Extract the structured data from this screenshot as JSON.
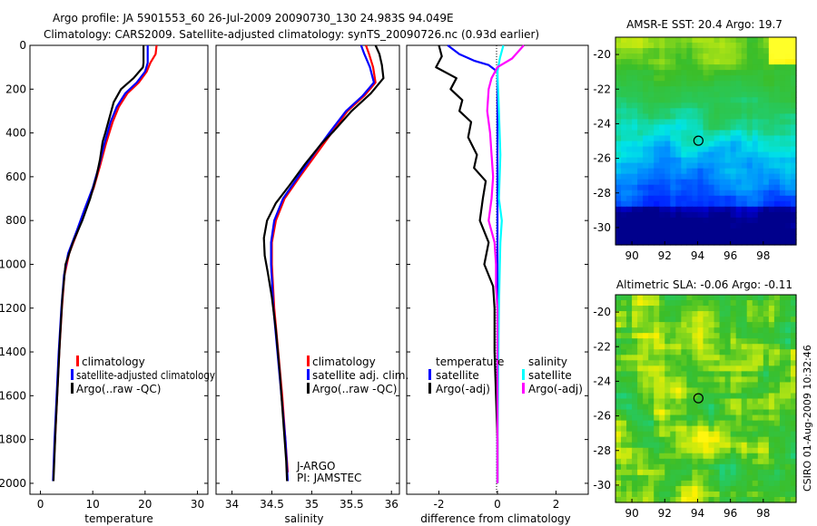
{
  "header": {
    "line1": "Argo profile: JA 5901553_60 26-Jul-2009 20090730_130 24.983S 94.049E",
    "line2": "Climatology: CARS2009. Satellite-adjusted climatology: synTS_20090726.nc (0.93d earlier)"
  },
  "footer_stamp": "CSIRO 01-Aug-2009 10:32:46",
  "chart_data": [
    {
      "type": "line",
      "id": "temperature",
      "xlabel": "temperature",
      "ylabel": "",
      "xlim": [
        -2,
        32
      ],
      "ylim": [
        2050,
        0
      ],
      "xticks": [
        "0",
        "10",
        "20",
        "30"
      ],
      "yticks": [
        "0",
        "200",
        "400",
        "600",
        "800",
        "1000",
        "1200",
        "1400",
        "1600",
        "1800",
        "2000"
      ],
      "legend": [
        "climatology",
        "satellite-adjusted climatology",
        "Argo(..raw -QC)"
      ],
      "series": [
        {
          "name": "climatology",
          "color": "#ff0000",
          "values": [
            [
              22.2,
              0
            ],
            [
              22,
              40
            ],
            [
              21,
              80
            ],
            [
              20.3,
              120
            ],
            [
              18.8,
              170
            ],
            [
              16.6,
              220
            ],
            [
              15,
              280
            ],
            [
              13.8,
              350
            ],
            [
              12.5,
              450
            ],
            [
              11.4,
              550
            ],
            [
              10.2,
              650
            ],
            [
              8.6,
              750
            ],
            [
              7.1,
              850
            ],
            [
              5.5,
              950
            ],
            [
              4.6,
              1050
            ],
            [
              4.1,
              1200
            ],
            [
              3.6,
              1400
            ],
            [
              3.2,
              1600
            ],
            [
              2.8,
              1800
            ],
            [
              2.5,
              1950
            ]
          ]
        },
        {
          "name": "satellite-adjusted climatology",
          "color": "#0000ff",
          "values": [
            [
              20.5,
              0
            ],
            [
              20.5,
              40
            ],
            [
              20.5,
              80
            ],
            [
              20,
              120
            ],
            [
              18.4,
              170
            ],
            [
              16.2,
              220
            ],
            [
              14.6,
              280
            ],
            [
              13.4,
              350
            ],
            [
              12.2,
              450
            ],
            [
              11.2,
              550
            ],
            [
              10,
              650
            ],
            [
              8.4,
              750
            ],
            [
              6.9,
              850
            ],
            [
              5.3,
              950
            ],
            [
              4.5,
              1050
            ],
            [
              4,
              1200
            ],
            [
              3.5,
              1400
            ],
            [
              3.1,
              1600
            ],
            [
              2.7,
              1800
            ],
            [
              2.4,
              1990
            ]
          ]
        },
        {
          "name": "Argo(..raw -QC)",
          "color": "#000000",
          "values": [
            [
              19.7,
              0
            ],
            [
              19.7,
              40
            ],
            [
              19.7,
              80
            ],
            [
              19.6,
              100
            ],
            [
              17.8,
              150
            ],
            [
              15.4,
              200
            ],
            [
              14,
              260
            ],
            [
              13.2,
              330
            ],
            [
              12.4,
              400
            ],
            [
              11.9,
              440
            ],
            [
              11.4,
              520
            ],
            [
              10.7,
              600
            ],
            [
              9.5,
              700
            ],
            [
              8,
              800
            ],
            [
              6.2,
              900
            ],
            [
              4.8,
              1000
            ],
            [
              4.2,
              1150
            ],
            [
              3.7,
              1350
            ],
            [
              3.3,
              1550
            ],
            [
              2.9,
              1750
            ],
            [
              2.5,
              1990
            ]
          ]
        }
      ]
    },
    {
      "type": "line",
      "id": "salinity",
      "xlabel": "salinity",
      "xlim": [
        33.8,
        36.1
      ],
      "ylim": [
        2050,
        0
      ],
      "xticks": [
        "34",
        "34.5",
        "35",
        "35.5",
        "36"
      ],
      "legend": [
        "climatology",
        "satellite adj. clim.",
        "Argo(..raw -QC)"
      ],
      "annotations": [
        "J-ARGO",
        "PI: JAMSTEC"
      ],
      "series": [
        {
          "name": "climatology",
          "color": "#ff0000",
          "values": [
            [
              35.68,
              0
            ],
            [
              35.72,
              40
            ],
            [
              35.77,
              100
            ],
            [
              35.8,
              170
            ],
            [
              35.66,
              230
            ],
            [
              35.45,
              300
            ],
            [
              35.25,
              400
            ],
            [
              35.05,
              500
            ],
            [
              34.85,
              600
            ],
            [
              34.66,
              700
            ],
            [
              34.55,
              800
            ],
            [
              34.5,
              900
            ],
            [
              34.5,
              1000
            ],
            [
              34.53,
              1200
            ],
            [
              34.58,
              1400
            ],
            [
              34.63,
              1600
            ],
            [
              34.67,
              1800
            ],
            [
              34.7,
              1950
            ]
          ]
        },
        {
          "name": "satellite adj. clim.",
          "color": "#0000ff",
          "values": [
            [
              35.62,
              0
            ],
            [
              35.66,
              40
            ],
            [
              35.73,
              100
            ],
            [
              35.78,
              170
            ],
            [
              35.64,
              230
            ],
            [
              35.43,
              300
            ],
            [
              35.22,
              400
            ],
            [
              35.02,
              500
            ],
            [
              34.83,
              600
            ],
            [
              34.64,
              700
            ],
            [
              34.53,
              800
            ],
            [
              34.49,
              900
            ],
            [
              34.49,
              1000
            ],
            [
              34.52,
              1200
            ],
            [
              34.57,
              1400
            ],
            [
              34.62,
              1600
            ],
            [
              34.67,
              1800
            ],
            [
              34.7,
              1990
            ]
          ]
        },
        {
          "name": "Argo(..raw -QC)",
          "color": "#000000",
          "values": [
            [
              35.8,
              0
            ],
            [
              35.85,
              40
            ],
            [
              35.88,
              90
            ],
            [
              35.9,
              150
            ],
            [
              35.74,
              220
            ],
            [
              35.5,
              300
            ],
            [
              35.28,
              390
            ],
            [
              35.12,
              450
            ],
            [
              34.92,
              540
            ],
            [
              34.72,
              640
            ],
            [
              34.55,
              720
            ],
            [
              34.44,
              800
            ],
            [
              34.4,
              880
            ],
            [
              34.41,
              960
            ],
            [
              34.45,
              1040
            ],
            [
              34.5,
              1150
            ],
            [
              34.55,
              1300
            ],
            [
              34.6,
              1500
            ],
            [
              34.64,
              1700
            ],
            [
              34.68,
              1900
            ],
            [
              34.69,
              1990
            ]
          ]
        }
      ]
    },
    {
      "type": "line",
      "id": "difference",
      "xlabel": "difference from climatology",
      "xlim": [
        -3.1,
        3.1
      ],
      "ylim": [
        2050,
        0
      ],
      "xticks": [
        "-2",
        "0",
        "2"
      ],
      "legend_groups": [
        {
          "title": "temperature",
          "entries": [
            "satellite",
            "Argo(-adj)"
          ]
        },
        {
          "title": "salinity",
          "entries": [
            "satellite",
            "Argo(-adj)"
          ]
        }
      ],
      "series": [
        {
          "name": "temperature satellite",
          "color": "#0000ff",
          "values": [
            [
              -1.7,
              0
            ],
            [
              -1.3,
              40
            ],
            [
              -0.8,
              70
            ],
            [
              -0.3,
              90
            ],
            [
              0,
              120
            ],
            [
              0,
              400
            ],
            [
              0,
              2000
            ]
          ]
        },
        {
          "name": "temperature Argo(-adj)",
          "color": "#000000",
          "values": [
            [
              -2,
              0
            ],
            [
              -1.9,
              50
            ],
            [
              -2.1,
              100
            ],
            [
              -1.4,
              150
            ],
            [
              -1.6,
              200
            ],
            [
              -1.2,
              250
            ],
            [
              -1.3,
              300
            ],
            [
              -0.9,
              350
            ],
            [
              -1,
              420
            ],
            [
              -0.7,
              500
            ],
            [
              -0.8,
              560
            ],
            [
              -0.4,
              620
            ],
            [
              -0.5,
              700
            ],
            [
              -0.6,
              800
            ],
            [
              -0.3,
              900
            ],
            [
              -0.45,
              1000
            ],
            [
              -0.15,
              1100
            ],
            [
              -0.1,
              1200
            ],
            [
              -0.1,
              1400
            ],
            [
              -0.05,
              1600
            ],
            [
              0,
              1800
            ],
            [
              0,
              2000
            ]
          ]
        },
        {
          "name": "salinity satellite",
          "color": "#00ffff",
          "values": [
            [
              0.2,
              0
            ],
            [
              0.08,
              60
            ],
            [
              0,
              120
            ],
            [
              0.05,
              300
            ],
            [
              0.1,
              500
            ],
            [
              0.05,
              700
            ],
            [
              0.15,
              800
            ],
            [
              0.1,
              900
            ],
            [
              0.08,
              1000
            ],
            [
              0.05,
              1200
            ],
            [
              0.03,
              1400
            ],
            [
              0.02,
              1600
            ],
            [
              0,
              1800
            ],
            [
              0,
              2000
            ]
          ]
        },
        {
          "name": "salinity Argo(-adj)",
          "color": "#ff00ff",
          "values": [
            [
              0.9,
              0
            ],
            [
              0.5,
              60
            ],
            [
              0,
              100
            ],
            [
              -0.2,
              150
            ],
            [
              -0.3,
              200
            ],
            [
              -0.35,
              300
            ],
            [
              -0.25,
              400
            ],
            [
              -0.2,
              500
            ],
            [
              -0.15,
              600
            ],
            [
              -0.2,
              700
            ],
            [
              -0.3,
              800
            ],
            [
              -0.1,
              900
            ],
            [
              -0.05,
              1000
            ],
            [
              -0.05,
              1100
            ],
            [
              0,
              1200
            ],
            [
              0,
              2000
            ]
          ]
        }
      ]
    },
    {
      "type": "heatmap",
      "id": "sst",
      "title": "AMSR-E SST: 20.4 Argo: 19.7",
      "xlim": [
        89,
        100
      ],
      "ylim": [
        -31,
        -19
      ],
      "xticks": [
        "90",
        "92",
        "94",
        "96",
        "98"
      ],
      "yticks": [
        "-20",
        "-22",
        "-24",
        "-26",
        "-28",
        "-30"
      ],
      "marker": [
        94.05,
        -24.98
      ]
    },
    {
      "type": "heatmap",
      "id": "sla",
      "title": "Altimetric SLA: -0.06 Argo: -0.11",
      "xlim": [
        89,
        100
      ],
      "ylim": [
        -31,
        -19
      ],
      "xticks": [
        "90",
        "92",
        "94",
        "96",
        "98"
      ],
      "yticks": [
        "-20",
        "-22",
        "-24",
        "-26",
        "-28",
        "-30"
      ],
      "marker": [
        94.05,
        -24.98
      ]
    }
  ]
}
